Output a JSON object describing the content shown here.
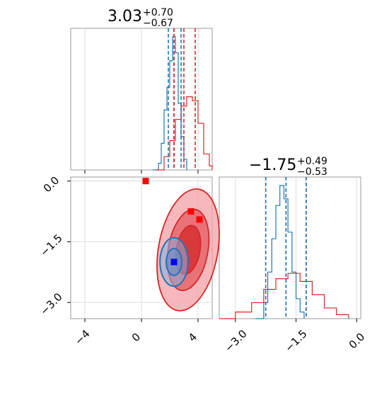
{
  "chart_data": [
    {
      "type": "line",
      "panel": "histogram-x",
      "title_main": "3.03",
      "title_plus": "+0.70",
      "title_minus": "−0.67",
      "xlim": [
        -5,
        5
      ],
      "series": [
        {
          "color": "#1f77b4",
          "x": [
            0.8,
            1.2,
            1.4,
            1.6,
            1.8,
            2.0,
            2.2,
            2.4,
            2.6,
            2.8,
            3.0,
            3.2
          ],
          "y": [
            0.0,
            0.05,
            0.2,
            0.45,
            0.62,
            0.82,
            1.0,
            0.88,
            0.5,
            0.25,
            0.08,
            0.0
          ]
        },
        {
          "color": "#d62728",
          "x": [
            1.0,
            1.6,
            2.0,
            2.4,
            2.8,
            3.2,
            3.6,
            4.0,
            4.4,
            4.8,
            5.0
          ],
          "y": [
            0.0,
            0.1,
            0.22,
            0.38,
            0.48,
            0.55,
            0.52,
            0.35,
            0.12,
            0.03,
            0.0
          ]
        }
      ],
      "quantile_lines": [
        {
          "color": "#1f77b4",
          "x": [
            1.9,
            2.3,
            2.8
          ]
        },
        {
          "color": "#d62728",
          "x": [
            2.3,
            3.0,
            3.8
          ]
        }
      ]
    },
    {
      "type": "scatter",
      "panel": "joint-contour",
      "xlim": [
        -5,
        5
      ],
      "ylim": [
        -3.4,
        0.1
      ],
      "xticks": [
        "−4",
        "0",
        "4"
      ],
      "yticks": [
        "0.0",
        "−1.5",
        "−3.0"
      ],
      "series": [
        {
          "color": "#d62728",
          "kind": "contour",
          "center": [
            3.3,
            -1.7
          ],
          "levels": [
            0.6,
            1.0,
            1.5
          ]
        },
        {
          "color": "#1f77b4",
          "kind": "contour",
          "center": [
            2.3,
            -2.0
          ],
          "levels": [
            0.5,
            0.9
          ]
        }
      ],
      "markers": [
        {
          "color": "#ff0000",
          "x": 0.3,
          "y": 0.0
        },
        {
          "color": "#ff0000",
          "x": 3.5,
          "y": -0.75
        },
        {
          "color": "#ff0000",
          "x": 4.1,
          "y": -0.95
        },
        {
          "color": "#0000ff",
          "x": 2.3,
          "y": -2.0
        }
      ]
    },
    {
      "type": "line",
      "panel": "histogram-y",
      "title_main": "−1.75",
      "title_plus": "+0.49",
      "title_minus": "−0.53",
      "xlim": [
        -3.4,
        0.1
      ],
      "xticks": [
        "−3.0",
        "−1.5",
        "0.0"
      ],
      "series": [
        {
          "color": "#1f77b4",
          "x": [
            -2.5,
            -2.3,
            -2.2,
            -2.1,
            -2.0,
            -1.9,
            -1.8,
            -1.7,
            -1.6,
            -1.5,
            -1.4,
            -1.3
          ],
          "y": [
            0.0,
            0.12,
            0.35,
            0.6,
            0.85,
            1.0,
            0.9,
            0.65,
            0.35,
            0.15,
            0.05,
            0.0
          ]
        },
        {
          "color": "#d62728",
          "x": [
            -3.4,
            -3.0,
            -2.6,
            -2.3,
            -2.0,
            -1.7,
            -1.4,
            -1.1,
            -0.8,
            -0.5,
            -0.2
          ],
          "y": [
            0.0,
            0.05,
            0.12,
            0.22,
            0.3,
            0.34,
            0.28,
            0.18,
            0.08,
            0.03,
            0.0
          ]
        }
      ],
      "quantile_lines": [
        {
          "color": "#d62728",
          "x": [
            -2.25,
            -1.75,
            -1.25
          ]
        },
        {
          "color": "#1f77b4",
          "x": [
            -2.25,
            -1.75,
            -1.25
          ]
        }
      ]
    }
  ]
}
